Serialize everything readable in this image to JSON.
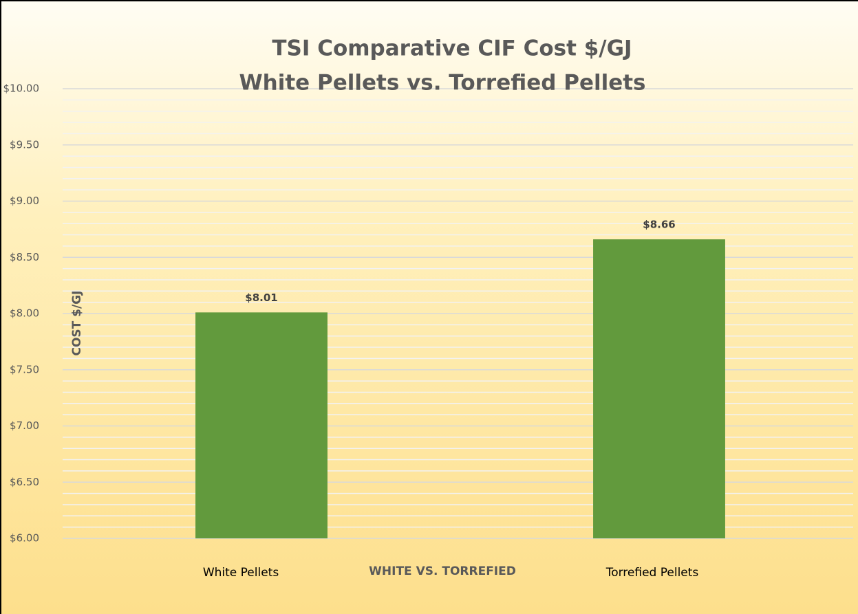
{
  "chart_data": {
    "type": "bar",
    "title": "TSI Comparative CIF Cost $/GJ",
    "subtitle": "White Pellets vs. Torrefied Pellets",
    "x_label": "WHITE VS. TORREFIED",
    "y_label": "COST $/GJ",
    "categories": [
      "White Pellets",
      "Torrefied Pellets"
    ],
    "values": [
      8.01,
      8.66
    ],
    "value_labels": [
      "$8.01",
      "$8.66"
    ],
    "color": "#629a3d",
    "ylim": [
      6,
      10
    ],
    "yticks": [
      {
        "value": 6,
        "label": "$6.00"
      },
      {
        "value": 6.5,
        "label": "$6.50"
      },
      {
        "value": 7,
        "label": "$7.00"
      },
      {
        "value": 7.5,
        "label": "$7.50"
      },
      {
        "value": 8,
        "label": "$8.00"
      },
      {
        "value": 8.5,
        "label": "$8.50"
      },
      {
        "value": 9,
        "label": "$9.00"
      },
      {
        "value": 9.5,
        "label": "$9.50"
      },
      {
        "value": 10,
        "label": "$10.00"
      }
    ],
    "minor_yticks": [
      6.1,
      6.2,
      6.3,
      6.4,
      6.6,
      6.7,
      6.8,
      6.9,
      7.1,
      7.2,
      7.3,
      7.4,
      7.6,
      7.7,
      7.8,
      7.9,
      8.1,
      8.2,
      8.3,
      8.4,
      8.6,
      8.7,
      8.8,
      8.9,
      9.1,
      9.2,
      9.3,
      9.4,
      9.6,
      9.7,
      9.8,
      9.9
    ],
    "grid": true
  }
}
